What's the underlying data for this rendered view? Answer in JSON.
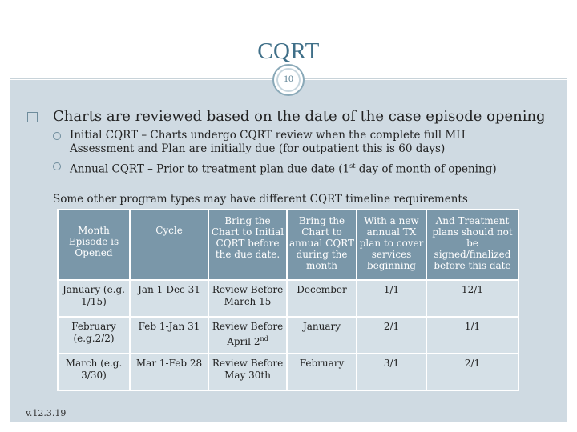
{
  "slide": {
    "title": "CQRT",
    "page_number": "10",
    "version": "v.12.3.19"
  },
  "bullets": {
    "main": "Charts are reviewed based on the date of the case episode opening",
    "sub1_line1": "Initial CQRT – Charts undergo CQRT review when the complete full MH",
    "sub1_line2": "Assessment and Plan are initially due (for outpatient this is 60 days)",
    "sub2_pre": "Annual CQRT – Prior to treatment plan due date (1",
    "sub2_sup": "st",
    "sub2_post": " day of month of opening)"
  },
  "note": "Some other program types may have different CQRT timeline requirements",
  "table": {
    "headers": [
      "Month Episode is Opened",
      "Cycle",
      "Bring the Chart to Initial CQRT before the due date.",
      "Bring the Chart to annual CQRT during the month",
      "With a new annual TX plan to cover services beginning",
      "And Treatment plans should not be signed/finalized before this date"
    ],
    "rows": [
      {
        "month": "January (e.g. 1/15)",
        "cycle": "Jan 1-Dec 31",
        "initial": "Review Before March 15",
        "initial_sup": "",
        "annual": "December",
        "tx": "1/1",
        "sign": "12/1"
      },
      {
        "month": "February (e.g.2/2)",
        "cycle": "Feb 1-Jan 31",
        "initial": "Review Before April 2",
        "initial_sup": "nd",
        "annual": "January",
        "tx": "2/1",
        "sign": "1/1"
      },
      {
        "month": "March (e.g. 3/30)",
        "cycle": "Mar 1-Feb 28",
        "initial": "Review Before May 30th",
        "initial_sup": "",
        "annual": "February",
        "tx": "3/1",
        "sign": "2/1"
      }
    ]
  },
  "colors": {
    "title": "#3f6f88",
    "content_bg": "#cfdae2",
    "header_bg": "#7a97a9",
    "cell_bg": "#d5e0e7"
  }
}
